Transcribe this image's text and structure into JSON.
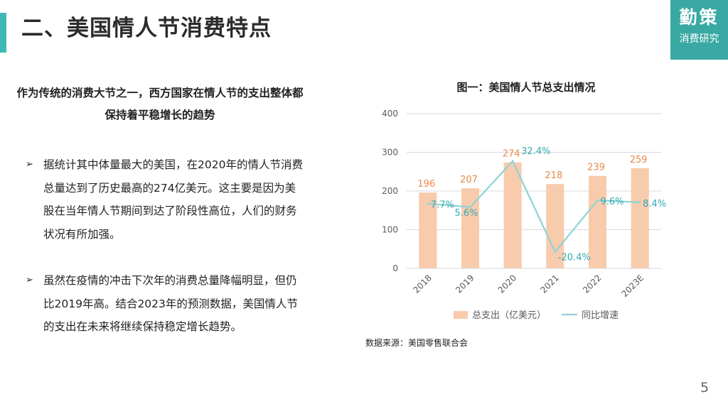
{
  "header": {
    "title": "二、美国情人节消费特点",
    "logo_main": "勤策",
    "logo_sub": "消费研究"
  },
  "left": {
    "lead": "作为传统的消费大节之一，西方国家在情人节的支出整体都保持着平稳增长的趋势",
    "bullets": [
      "据统计其中体量最大的美国，在2020年的情人节消费总量达到了历史最高的274亿美元。这主要是因为美股在当年情人节期间到达了阶段性高位，人们的财务状况有所加强。",
      "虽然在疫情的冲击下次年的消费总量降幅明显，但仍比2019年高。结合2023年的预测数据，美国情人节的支出在未来将继续保持稳定增长趋势。"
    ],
    "bullet_mark": "➢"
  },
  "chart_data": {
    "type": "bar",
    "title": "图一：美国情人节总支出情况",
    "categories": [
      "2018",
      "2019",
      "2020",
      "2021",
      "2022",
      "2023E"
    ],
    "series": [
      {
        "name": "总支出（亿美元）",
        "type": "bar",
        "values": [
          196,
          207,
          274,
          218,
          239,
          259
        ],
        "labels": [
          "196",
          "207",
          "274",
          "218",
          "239",
          "259"
        ]
      },
      {
        "name": "同比增速",
        "type": "line",
        "values": [
          7.7,
          5.6,
          32.4,
          -20.4,
          9.6,
          8.4
        ],
        "labels": [
          "7.7%",
          "5.6%",
          "32.4%",
          "-20.4%",
          "9.6%",
          "8.4%"
        ]
      }
    ],
    "ylim": [
      0,
      400
    ],
    "yticks": [
      "0",
      "100",
      "200",
      "300",
      "400"
    ],
    "legend": "bottom",
    "colors": {
      "bar": "#f8cbad",
      "bar_label": "#e8894a",
      "line": "#8fd3d6",
      "line_label": "#33aab0",
      "grid": "#d9d9d9",
      "axis_text": "#595959"
    }
  },
  "source": "数据来源：美国零售联合会",
  "page_number": "5"
}
